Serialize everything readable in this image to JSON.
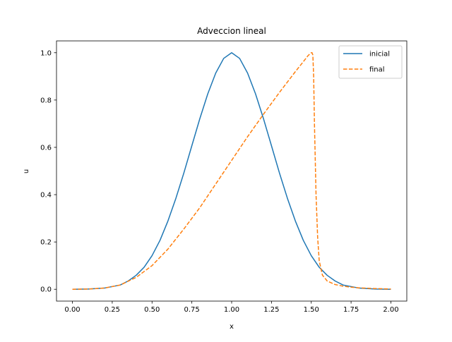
{
  "chart_data": {
    "type": "line",
    "title": "Adveccion lineal",
    "xlabel": "x",
    "ylabel": "u",
    "xlim": [
      -0.1,
      2.1
    ],
    "ylim": [
      -0.05,
      1.05
    ],
    "xticks": [
      0.0,
      0.25,
      0.5,
      0.75,
      1.0,
      1.25,
      1.5,
      1.75,
      2.0
    ],
    "xtick_labels": [
      "0.00",
      "0.25",
      "0.50",
      "0.75",
      "1.00",
      "1.25",
      "1.50",
      "1.75",
      "2.00"
    ],
    "yticks": [
      0.0,
      0.2,
      0.4,
      0.6,
      0.8,
      1.0
    ],
    "ytick_labels": [
      "0.0",
      "0.2",
      "0.4",
      "0.6",
      "0.8",
      "1.0"
    ],
    "grid": false,
    "legend_position": "top-right",
    "series": [
      {
        "name": "inicial",
        "color": "#1f77b4",
        "style": "solid",
        "x": [
          0.0,
          0.1,
          0.2,
          0.3,
          0.35,
          0.4,
          0.45,
          0.5,
          0.55,
          0.6,
          0.65,
          0.7,
          0.75,
          0.8,
          0.85,
          0.9,
          0.95,
          1.0,
          1.05,
          1.1,
          1.15,
          1.2,
          1.25,
          1.3,
          1.35,
          1.4,
          1.45,
          1.5,
          1.55,
          1.6,
          1.65,
          1.7,
          1.8,
          1.9,
          2.0
        ],
        "y": [
          0.0,
          0.001,
          0.005,
          0.018,
          0.035,
          0.059,
          0.093,
          0.142,
          0.207,
          0.289,
          0.385,
          0.492,
          0.607,
          0.721,
          0.826,
          0.914,
          0.976,
          1.0,
          0.976,
          0.914,
          0.826,
          0.721,
          0.607,
          0.492,
          0.385,
          0.289,
          0.207,
          0.142,
          0.093,
          0.059,
          0.035,
          0.018,
          0.005,
          0.001,
          0.0
        ]
      },
      {
        "name": "final",
        "color": "#ff7f0e",
        "style": "dashed",
        "x": [
          0.0,
          0.1,
          0.2,
          0.3,
          0.4,
          0.5,
          0.6,
          0.7,
          0.8,
          0.9,
          1.0,
          1.1,
          1.2,
          1.3,
          1.4,
          1.45,
          1.48,
          1.5,
          1.505,
          1.51,
          1.515,
          1.52,
          1.53,
          1.54,
          1.55,
          1.57,
          1.6,
          1.65,
          1.7,
          1.75,
          1.8,
          1.9,
          2.0
        ],
        "y": [
          0.0,
          0.001,
          0.005,
          0.018,
          0.05,
          0.1,
          0.17,
          0.255,
          0.345,
          0.445,
          0.545,
          0.645,
          0.74,
          0.832,
          0.92,
          0.962,
          0.988,
          1.0,
          1.0,
          0.99,
          0.9,
          0.7,
          0.4,
          0.22,
          0.12,
          0.06,
          0.035,
          0.02,
          0.013,
          0.009,
          0.006,
          0.003,
          0.001
        ]
      }
    ]
  }
}
